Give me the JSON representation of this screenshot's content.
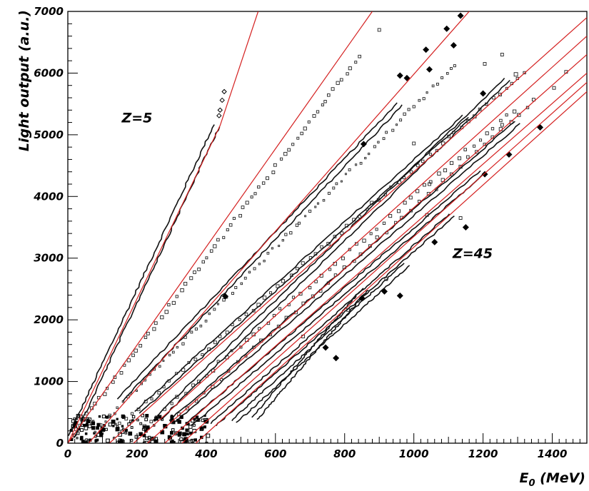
{
  "chart_data": {
    "type": "scatter",
    "xlabel_main": "E",
    "xlabel_sub": "0",
    "xlabel_unit": " (MeV)",
    "ylabel": "Light output (a.u.)",
    "xlim": [
      0,
      1500
    ],
    "ylim": [
      0,
      7000
    ],
    "x_ticks": [
      0,
      200,
      400,
      600,
      800,
      1000,
      1200,
      1400
    ],
    "y_ticks": [
      0,
      1000,
      2000,
      3000,
      4000,
      5000,
      6000,
      7000
    ],
    "annotations": [
      {
        "text": "Z=5",
        "x": 200,
        "y": 5200
      },
      {
        "text": "Z=45",
        "x": 1170,
        "y": 3000
      }
    ],
    "fit_lines": [
      {
        "color": "#d42020",
        "points": [
          [
            0,
            0
          ],
          [
            440,
            5150
          ],
          [
            550,
            7000
          ]
        ]
      },
      {
        "color": "#d42020",
        "points": [
          [
            0,
            0
          ],
          [
            880,
            7000
          ]
        ]
      },
      {
        "color": "#d42020",
        "points": [
          [
            60,
            0
          ],
          [
            1160,
            7000
          ]
        ]
      },
      {
        "color": "#d42020",
        "points": [
          [
            120,
            0
          ],
          [
            1500,
            6900
          ]
        ]
      },
      {
        "color": "#d42020",
        "points": [
          [
            190,
            0
          ],
          [
            1500,
            6600
          ]
        ]
      },
      {
        "color": "#d42020",
        "points": [
          [
            230,
            0
          ],
          [
            1500,
            6300
          ]
        ]
      },
      {
        "color": "#d42020",
        "points": [
          [
            280,
            0
          ],
          [
            1500,
            6000
          ]
        ]
      },
      {
        "color": "#d42020",
        "points": [
          [
            330,
            0
          ],
          [
            1500,
            5850
          ]
        ]
      },
      {
        "color": "#d42020",
        "points": [
          [
            370,
            0
          ],
          [
            1500,
            5700
          ]
        ]
      }
    ],
    "bands": [
      {
        "from": [
          10,
          100
        ],
        "to": [
          430,
          5150
        ],
        "thickness": 2.6
      },
      {
        "from": [
          150,
          700
        ],
        "to": [
          960,
          5500
        ],
        "thickness": 2.6
      },
      {
        "from": [
          200,
          500
        ],
        "to": [
          1150,
          5300
        ],
        "thickness": 2.6
      },
      {
        "from": [
          260,
          400
        ],
        "to": [
          1270,
          5900
        ],
        "thickness": 2.6
      },
      {
        "from": [
          300,
          350
        ],
        "to": [
          1300,
          5200
        ],
        "thickness": 2.6
      },
      {
        "from": [
          350,
          300
        ],
        "to": [
          1200,
          4400
        ],
        "thickness": 2.6
      },
      {
        "from": [
          420,
          300
        ],
        "to": [
          1110,
          3700
        ],
        "thickness": 2.6
      },
      {
        "from": [
          480,
          350
        ],
        "to": [
          980,
          2900
        ],
        "thickness": 2.6
      },
      {
        "from": [
          540,
          400
        ],
        "to": [
          860,
          2500
        ],
        "thickness": 2.6
      }
    ],
    "marker_tracks": [
      {
        "from": [
          20,
          200
        ],
        "to": [
          840,
          6250
        ],
        "count": 70,
        "size": 3
      },
      {
        "from": [
          80,
          200
        ],
        "to": [
          1120,
          6140
        ],
        "count": 80,
        "size": 2
      },
      {
        "from": [
          150,
          300
        ],
        "to": [
          1320,
          6020
        ],
        "count": 65,
        "size": 3
      },
      {
        "from": [
          220,
          250
        ],
        "to": [
          1290,
          5400
        ],
        "count": 55,
        "size": 3
      },
      {
        "from": [
          300,
          350
        ],
        "to": [
          1350,
          5560
        ],
        "count": 45,
        "size": 3
      }
    ],
    "isolated_markers": [
      {
        "x": 900,
        "y": 6700,
        "size": 3
      },
      {
        "x": 1205,
        "y": 6150,
        "size": 3
      },
      {
        "x": 1255,
        "y": 6300,
        "size": 3
      },
      {
        "x": 1295,
        "y": 5980,
        "size": 4
      },
      {
        "x": 1440,
        "y": 6020,
        "size": 3
      },
      {
        "x": 1405,
        "y": 5760,
        "size": 3
      },
      {
        "x": 1038,
        "y": 3700,
        "size": 3
      },
      {
        "x": 1135,
        "y": 3650,
        "size": 3
      },
      {
        "x": 920,
        "y": 2660,
        "size": 3
      },
      {
        "x": 810,
        "y": 2160,
        "size": 3
      },
      {
        "x": 680,
        "y": 1730,
        "size": 3
      },
      {
        "x": 1255,
        "y": 5160,
        "size": 3
      },
      {
        "x": 1000,
        "y": 4860,
        "size": 3
      },
      {
        "x": 1045,
        "y": 4200,
        "size": 3
      }
    ],
    "diamond_markers": [
      {
        "x": 1135,
        "y": 6930
      },
      {
        "x": 1035,
        "y": 6380
      },
      {
        "x": 960,
        "y": 5960
      },
      {
        "x": 1045,
        "y": 6060
      },
      {
        "x": 1115,
        "y": 6450
      },
      {
        "x": 1095,
        "y": 6720
      },
      {
        "x": 855,
        "y": 4850
      },
      {
        "x": 1200,
        "y": 5670
      },
      {
        "x": 1365,
        "y": 5120
      },
      {
        "x": 1150,
        "y": 3500
      },
      {
        "x": 1275,
        "y": 4680
      },
      {
        "x": 1205,
        "y": 4360
      },
      {
        "x": 980,
        "y": 5920
      },
      {
        "x": 455,
        "y": 2380
      },
      {
        "x": 960,
        "y": 2390
      },
      {
        "x": 915,
        "y": 2460
      },
      {
        "x": 850,
        "y": 2350
      },
      {
        "x": 745,
        "y": 1550
      },
      {
        "x": 775,
        "y": 1380
      },
      {
        "x": 1060,
        "y": 3260
      }
    ],
    "open_diamonds": [
      {
        "x": 437,
        "y": 5310
      },
      {
        "x": 440,
        "y": 5400
      },
      {
        "x": 446,
        "y": 5560
      },
      {
        "x": 452,
        "y": 5700
      }
    ]
  }
}
